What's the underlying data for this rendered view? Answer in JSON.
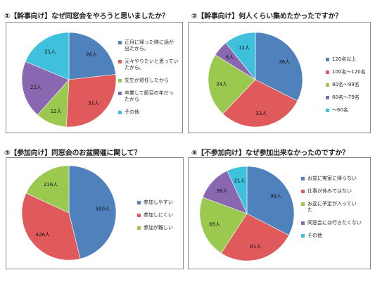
{
  "chart_data": [
    {
      "type": "pie",
      "title": "①【幹事向け】なぜ同窓会をやろうと思いましたか？",
      "series": [
        {
          "label": "正月に帰った時に話が\n出たから。",
          "value": 26,
          "display": "26人",
          "color": "#4f81bd"
        },
        {
          "label": "元々やりたいと思ってい\nたから。",
          "value": 31,
          "display": "31人",
          "color": "#e0595b"
        },
        {
          "label": "先生が退任したから",
          "value": 12,
          "display": "12人",
          "color": "#9bc84f"
        },
        {
          "label": "卒業して節目の年だっ\nたから",
          "value": 22,
          "display": "22人",
          "color": "#8a67b1"
        },
        {
          "label": "その他",
          "value": 21,
          "display": "21人",
          "color": "#3fc1dd"
        }
      ]
    },
    {
      "type": "pie",
      "title": "②【幹事向け】何人くらい集めたかったですか？",
      "series": [
        {
          "label": "120名以上",
          "value": 36,
          "display": "36人",
          "color": "#4f81bd"
        },
        {
          "label": "100名〜120名",
          "value": 33,
          "display": "33人",
          "color": "#e0595b"
        },
        {
          "label": "80名〜99名",
          "value": 24,
          "display": "24人",
          "color": "#9bc84f"
        },
        {
          "label": "60名〜79名",
          "value": 6,
          "display": "6人",
          "color": "#8a67b1"
        },
        {
          "label": "〜60名",
          "value": 12,
          "display": "12人",
          "color": "#3fc1dd"
        }
      ]
    },
    {
      "type": "pie",
      "title": "③【参加向け】同窓会のお盆開催に関して？",
      "series": [
        {
          "label": "参加しやすい",
          "value": 550,
          "display": "550人",
          "color": "#4f81bd"
        },
        {
          "label": "参加しにくい",
          "value": 426,
          "display": "426人",
          "color": "#e0595b"
        },
        {
          "label": "参加が難しい",
          "value": 216,
          "display": "216人",
          "color": "#9bc84f"
        }
      ]
    },
    {
      "type": "pie",
      "title": "④【不参加向け】なぜ参加出来なかったのですか？",
      "series": [
        {
          "label": "お盆に実家に帰らない",
          "value": 99,
          "display": "99人",
          "color": "#4f81bd"
        },
        {
          "label": "仕事が休みではない",
          "value": 81,
          "display": "81人",
          "color": "#e0595b"
        },
        {
          "label": "お盆に予定が入ってい\nた",
          "value": 65,
          "display": "65人",
          "color": "#9bc84f"
        },
        {
          "label": "同窓会には行きたくない",
          "value": 38,
          "display": "38人",
          "color": "#8a67b1"
        },
        {
          "label": "その他",
          "value": 21,
          "display": "21人",
          "color": "#3fc1dd"
        }
      ]
    }
  ]
}
